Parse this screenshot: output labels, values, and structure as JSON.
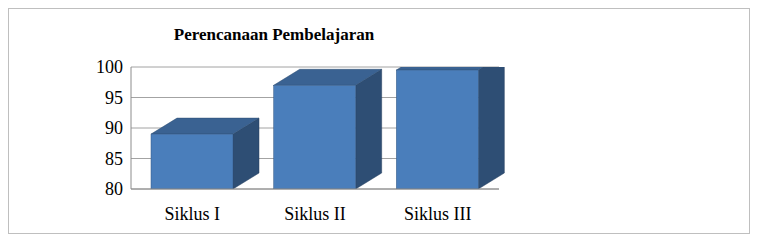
{
  "chart_data": {
    "type": "bar",
    "title": "Perencanaan Pembelajaran",
    "categories": [
      "Siklus I",
      "Siklus II",
      "Siklus III"
    ],
    "values": [
      89,
      97,
      99.5
    ],
    "color": "#4a7ebb",
    "ylim": [
      80,
      100
    ],
    "yticks": [
      80,
      85,
      90,
      95,
      100
    ],
    "grid": true
  }
}
